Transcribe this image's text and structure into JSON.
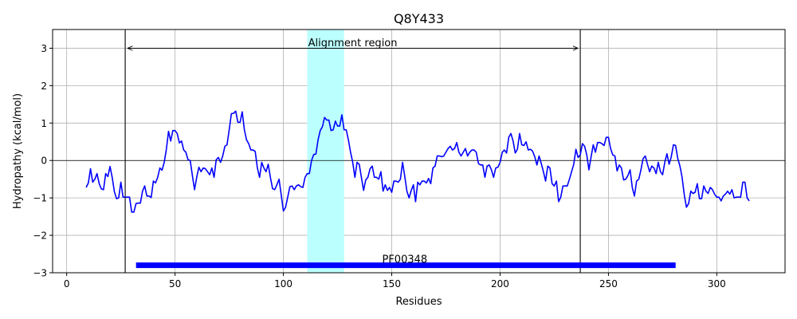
{
  "chart_data": {
    "type": "line",
    "title": "Q8Y433",
    "xlabel": "Residues",
    "ylabel": "Hydropathy (kcal/mol)",
    "xlim": [
      -6.5,
      331.5
    ],
    "ylim": [
      -3,
      3.5
    ],
    "x_ticks": [
      0,
      50,
      100,
      150,
      200,
      250,
      300
    ],
    "y_ticks": [
      -3,
      -2,
      -1,
      0,
      1,
      2,
      3
    ],
    "grid": true,
    "colors": {
      "line": "#0000ff",
      "bar": "#0000ff",
      "highlight": "#bbffff",
      "reference": "#000000"
    },
    "series": [
      {
        "x": [
          9,
          10,
          11,
          12,
          13,
          14,
          15,
          16,
          17,
          18,
          19,
          20,
          21,
          22,
          23,
          24,
          25,
          26,
          27,
          28,
          29,
          30,
          31,
          32,
          33,
          34,
          35,
          36,
          37,
          38,
          39,
          40,
          41,
          42,
          43,
          44,
          45,
          46,
          47,
          48,
          49,
          50,
          51,
          52,
          53,
          54,
          55,
          56,
          57,
          58,
          59,
          60,
          61,
          62,
          63,
          64,
          65,
          66,
          67,
          68,
          69,
          70,
          71,
          72,
          73,
          74,
          75,
          76,
          77,
          78,
          79,
          80,
          81,
          82,
          83,
          84,
          85,
          86,
          87,
          88,
          89,
          90,
          91,
          92,
          93,
          94,
          95,
          96,
          97,
          98,
          99,
          100,
          101,
          102,
          103,
          104,
          105,
          106,
          107,
          108,
          109,
          110,
          111,
          112,
          113,
          114,
          115,
          116,
          117,
          118,
          119,
          120,
          121,
          122,
          123,
          124,
          125,
          126,
          127,
          128,
          129,
          130,
          131,
          132,
          133,
          134,
          135,
          136,
          137,
          138,
          139,
          140,
          141,
          142,
          143,
          144,
          145,
          146,
          147,
          148,
          149,
          150,
          151,
          152,
          153,
          154,
          155,
          156,
          157,
          158,
          159,
          160,
          161,
          162,
          163,
          164,
          165,
          166,
          167,
          168,
          169,
          170,
          171,
          172,
          173,
          174,
          175,
          176,
          177,
          178,
          179,
          180,
          181,
          182,
          183,
          184,
          185,
          186,
          187,
          188,
          189,
          190,
          191,
          192,
          193,
          194,
          195,
          196,
          197,
          198,
          199,
          200,
          201,
          202,
          203,
          204,
          205,
          206,
          207,
          208,
          209,
          210,
          211,
          212,
          213,
          214,
          215,
          216,
          217,
          218,
          219,
          220,
          221,
          222,
          223,
          224,
          225,
          226,
          227,
          228,
          229,
          230,
          231,
          232,
          233,
          234,
          235,
          236,
          237,
          238,
          239,
          240,
          241,
          242,
          243,
          244,
          245,
          246,
          247,
          248,
          249,
          250,
          251,
          252,
          253,
          254,
          255,
          256,
          257,
          258,
          259,
          260,
          261,
          262,
          263,
          264,
          265,
          266,
          267,
          268,
          269,
          270,
          271,
          272,
          273,
          274,
          275,
          276,
          277,
          278,
          279,
          280,
          281,
          282,
          283,
          284,
          285,
          286,
          287,
          288,
          289,
          290,
          291,
          292,
          293,
          294,
          295,
          296,
          297,
          298,
          299,
          300,
          301,
          302,
          303,
          304,
          305,
          306,
          307,
          308,
          309,
          310,
          311,
          312,
          313,
          314,
          315
        ],
        "y": [
          -0.72,
          -0.6,
          -0.22,
          -0.58,
          -0.5,
          -0.35,
          -0.62,
          -0.76,
          -0.78,
          -0.35,
          -0.43,
          -0.16,
          -0.45,
          -0.83,
          -1.02,
          -1.0,
          -0.58,
          -0.98,
          -0.98,
          -0.98,
          -0.98,
          -1.38,
          -1.38,
          -1.15,
          -1.14,
          -1.14,
          -0.82,
          -0.68,
          -0.95,
          -0.95,
          -0.99,
          -0.55,
          -0.6,
          -0.45,
          -0.2,
          -0.26,
          -0.05,
          0.3,
          0.78,
          0.52,
          0.8,
          0.8,
          0.72,
          0.47,
          0.52,
          0.28,
          0.22,
          0.02,
          0.0,
          -0.4,
          -0.78,
          -0.45,
          -0.18,
          -0.3,
          -0.2,
          -0.22,
          -0.3,
          -0.38,
          -0.2,
          -0.45,
          0.02,
          0.08,
          -0.05,
          0.12,
          0.38,
          0.42,
          0.82,
          1.25,
          1.26,
          1.32,
          1.02,
          1.02,
          1.3,
          0.82,
          0.55,
          0.45,
          0.28,
          0.28,
          0.24,
          -0.2,
          -0.45,
          -0.05,
          -0.2,
          -0.3,
          -0.1,
          -0.45,
          -0.75,
          -0.78,
          -0.65,
          -0.5,
          -0.92,
          -1.35,
          -1.25,
          -0.98,
          -0.7,
          -0.68,
          -0.78,
          -0.68,
          -0.65,
          -0.7,
          -0.72,
          -0.45,
          -0.35,
          -0.35,
          0.0,
          0.16,
          0.17,
          0.55,
          0.8,
          0.9,
          1.15,
          1.08,
          1.08,
          0.8,
          0.82,
          1.05,
          0.92,
          0.92,
          1.22,
          0.82,
          0.82,
          0.55,
          0.22,
          -0.05,
          -0.45,
          -0.05,
          -0.1,
          -0.45,
          -0.8,
          -0.52,
          -0.45,
          -0.22,
          -0.15,
          -0.45,
          -0.45,
          -0.5,
          -0.3,
          -0.82,
          -0.65,
          -0.8,
          -0.72,
          -0.85,
          -0.55,
          -0.55,
          -0.58,
          -0.5,
          -0.05,
          -0.42,
          -0.82,
          -1.0,
          -0.8,
          -0.65,
          -1.1,
          -0.58,
          -0.65,
          -0.55,
          -0.55,
          -0.6,
          -0.48,
          -0.62,
          -0.2,
          -0.15,
          0.12,
          0.12,
          0.1,
          0.12,
          0.22,
          0.32,
          0.38,
          0.28,
          0.32,
          0.48,
          0.22,
          0.12,
          0.22,
          0.32,
          0.12,
          0.22,
          0.28,
          0.28,
          0.22,
          -0.08,
          -0.12,
          -0.12,
          -0.45,
          -0.15,
          -0.12,
          -0.25,
          -0.45,
          -0.2,
          -0.18,
          -0.05,
          0.22,
          0.28,
          0.2,
          0.62,
          0.72,
          0.52,
          0.2,
          0.3,
          0.72,
          0.42,
          0.4,
          0.5,
          0.28,
          0.3,
          0.25,
          0.1,
          -0.12,
          0.12,
          -0.08,
          -0.3,
          -0.55,
          -0.15,
          -0.2,
          -0.62,
          -0.68,
          -0.55,
          -1.1,
          -0.98,
          -0.68,
          -0.68,
          -0.68,
          -0.5,
          -0.3,
          -0.1,
          0.3,
          0.08,
          0.15,
          0.45,
          0.38,
          0.15,
          -0.25,
          0.1,
          0.42,
          0.22,
          0.48,
          0.48,
          0.45,
          0.4,
          0.62,
          0.62,
          0.32,
          0.15,
          0.12,
          -0.28,
          -0.12,
          -0.2,
          -0.52,
          -0.5,
          -0.4,
          -0.25,
          -0.72,
          -0.95,
          -0.55,
          -0.5,
          -0.25,
          0.05,
          0.12,
          -0.1,
          -0.3,
          -0.15,
          -0.2,
          -0.35,
          -0.05,
          -0.3,
          -0.38,
          -0.05,
          0.18,
          -0.1,
          0.1,
          0.42,
          0.4,
          0.05,
          -0.15,
          -0.45,
          -0.92,
          -1.25,
          -1.15,
          -0.82,
          -0.88,
          -0.85,
          -0.62,
          -1.02,
          -1.02,
          -0.68,
          -0.82,
          -0.88,
          -0.72,
          -0.78,
          -0.9,
          -0.98,
          -0.98,
          -1.08,
          -0.95,
          -0.9,
          -0.82,
          -0.9,
          -0.78,
          -1.0,
          -0.98,
          -0.98,
          -0.98,
          -0.58,
          -0.58,
          -1.0,
          -1.08
        ]
      }
    ],
    "highlight_region": [
      111,
      128
    ],
    "alignment_bounds": [
      27,
      237
    ],
    "annotations": [
      {
        "text": "Alignment region",
        "x": 132,
        "y": 3.05
      },
      {
        "text": "PF00348",
        "x": 156,
        "y": -2.73
      }
    ],
    "domain_bar": {
      "label": "PF00348",
      "x_start": 32,
      "x_end": 281,
      "y": -2.8
    }
  }
}
